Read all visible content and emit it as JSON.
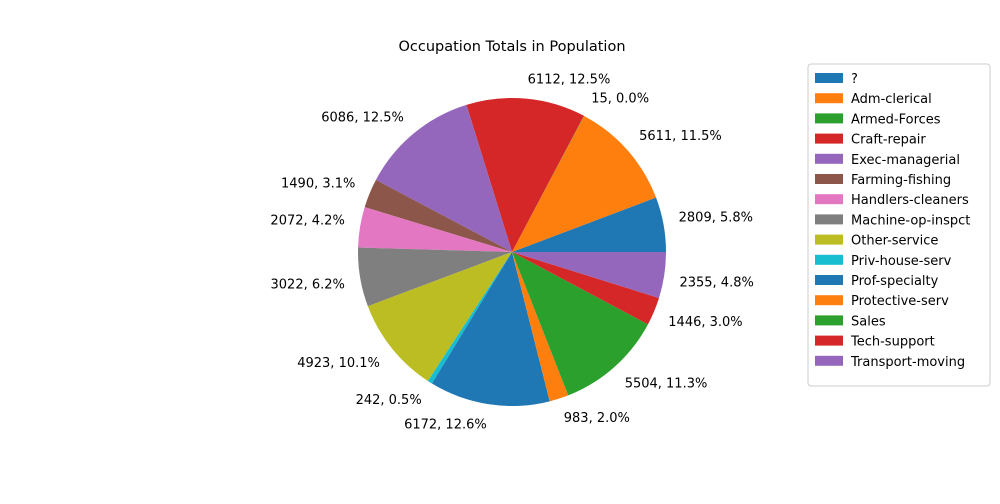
{
  "chart_data": {
    "type": "pie",
    "title": "Occupation Totals in Population",
    "start_angle_deg": 0,
    "direction": "counterclockwise",
    "legend_position": "right",
    "slices": [
      {
        "label": " ?",
        "value": 2809,
        "data_label": "2809, 5.8%",
        "color": "#1f77b4"
      },
      {
        "label": " Adm-clerical",
        "value": 5611,
        "data_label": "5611, 11.5%",
        "color": "#ff7f0e"
      },
      {
        "label": " Armed-Forces",
        "value": 15,
        "data_label": "15, 0.0%",
        "color": "#2ca02c"
      },
      {
        "label": " Craft-repair",
        "value": 6112,
        "data_label": "6112, 12.5%",
        "color": "#d62728"
      },
      {
        "label": " Exec-managerial",
        "value": 6086,
        "data_label": "6086, 12.5%",
        "color": "#9467bd"
      },
      {
        "label": " Farming-fishing",
        "value": 1490,
        "data_label": "1490, 3.1%",
        "color": "#8c564b"
      },
      {
        "label": " Handlers-cleaners",
        "value": 2072,
        "data_label": "2072, 4.2%",
        "color": "#e377c2"
      },
      {
        "label": " Machine-op-inspct",
        "value": 3022,
        "data_label": "3022, 6.2%",
        "color": "#7f7f7f"
      },
      {
        "label": " Other-service",
        "value": 4923,
        "data_label": "4923, 10.1%",
        "color": "#bcbd22"
      },
      {
        "label": " Priv-house-serv",
        "value": 242,
        "data_label": "242, 0.5%",
        "color": "#17becf"
      },
      {
        "label": " Prof-specialty",
        "value": 6172,
        "data_label": "6172, 12.6%",
        "color": "#1f77b4"
      },
      {
        "label": " Protective-serv",
        "value": 983,
        "data_label": "983, 2.0%",
        "color": "#ff7f0e"
      },
      {
        "label": " Sales",
        "value": 5504,
        "data_label": "5504, 11.3%",
        "color": "#2ca02c"
      },
      {
        "label": " Tech-support",
        "value": 1446,
        "data_label": "1446, 3.0%",
        "color": "#d62728"
      },
      {
        "label": " Transport-moving",
        "value": 2355,
        "data_label": "2355, 4.8%",
        "color": "#9467bd"
      }
    ]
  }
}
